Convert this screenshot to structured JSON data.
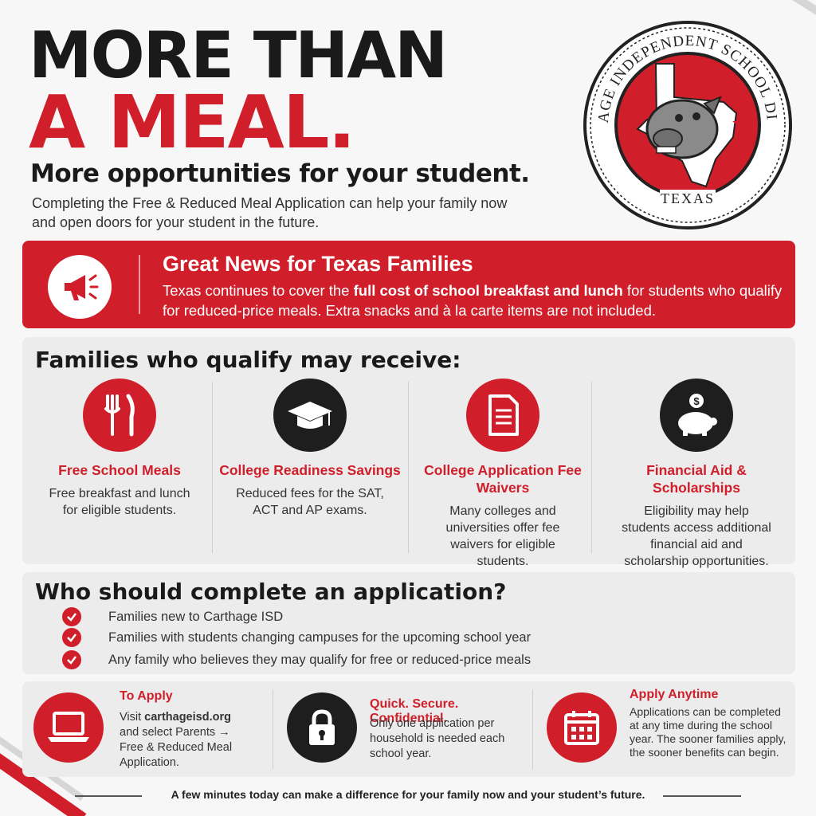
{
  "headline": {
    "line1": "MORE THAN",
    "line2": "A MEAL.",
    "subtitle": "More opportunities for your student.",
    "intro": "Completing the Free & Reduced Meal Application can help your family now and open doors for your student in the future."
  },
  "seal": {
    "top_text": "CARTHAGE INDEPENDENT SCHOOL DISTRICT",
    "bottom_text": "TEXAS",
    "colors": {
      "ring": "#222222",
      "fill": "#d01f2a",
      "state": "#ffffff"
    }
  },
  "banner": {
    "icon": "megaphone-icon",
    "title": "Great News for Texas Families",
    "body_pre": "Texas continues to cover the ",
    "body_bold": "full cost of school breakfast and lunch",
    "body_post": " for students who qualify for reduced-price meals. Extra snacks and à la carte items are not included."
  },
  "benefits": {
    "heading": "Families who qualify may receive:",
    "items": [
      {
        "icon": "fork-knife-icon",
        "title": "Free School Meals",
        "desc": "Free breakfast and lunch for eligible students."
      },
      {
        "icon": "graduation-cap-icon",
        "title": "College Readiness Savings",
        "desc": "Reduced fees for the SAT, ACT and AP exams."
      },
      {
        "icon": "document-icon",
        "title": "College Application Fee Waivers",
        "desc": "Many colleges and universities offer fee waivers for eligible students."
      },
      {
        "icon": "piggy-bank-icon",
        "title": "Financial Aid & Scholarships",
        "desc": "Eligibility may help students access additional financial aid and scholarship opportunities."
      }
    ]
  },
  "who": {
    "heading": "Who should complete an application?",
    "items": [
      "Families new to Carthage ISD",
      "Families with students  changing campuses for the upcoming school year",
      "Any family who believes they may qualify for free or reduced-price meals"
    ]
  },
  "steps": [
    {
      "icon": "laptop-icon",
      "title": "To Apply",
      "desc_pre": "Visit ",
      "desc_bold": "carthageisd.org",
      "desc_post": "and select Parents → Free & Reduced Meal Application."
    },
    {
      "icon": "lock-icon",
      "title": "Quick. Secure. Confidential.",
      "desc": "Only one application per household is needed each school year."
    },
    {
      "icon": "calendar-icon",
      "title": "Apply Anytime",
      "desc": "Applications can be completed at any time during the school year. The sooner families apply, the sooner benefits can begin."
    }
  ],
  "footer": "A few minutes today can make a difference for your family now and your student’s future.",
  "colors": {
    "brand_red": "#d01f2a",
    "dark": "#1a1a1a",
    "panel": "#ececec"
  }
}
